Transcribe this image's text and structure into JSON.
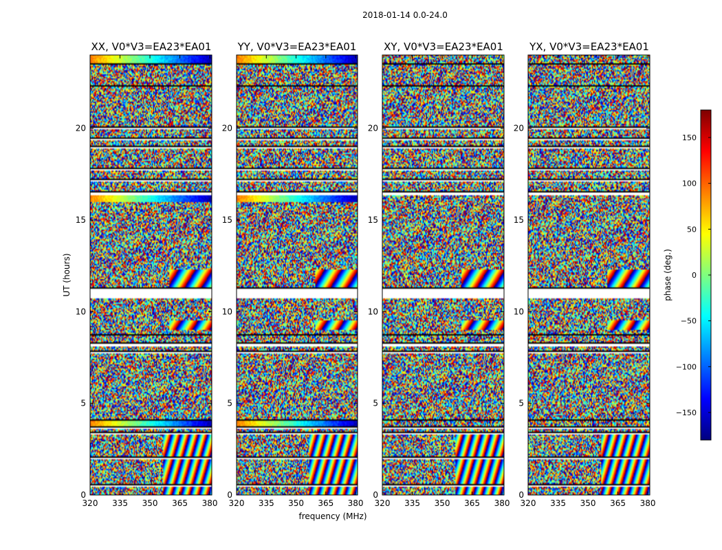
{
  "suptitle": "2018-01-14 0.0-24.0",
  "xlabel": "frequency (MHz)",
  "ylabel": "UT (hours)",
  "colorbar": {
    "label": "phase (deg.)",
    "ticks": [
      "150",
      "100",
      "50",
      "0",
      "−50",
      "−100",
      "−150"
    ],
    "tick_values": [
      150,
      100,
      50,
      0,
      -50,
      -100,
      -150
    ],
    "range": [
      -180,
      180
    ],
    "colormap": "jet",
    "colors": [
      "#00007f",
      "#0000ff",
      "#007fff",
      "#00ffff",
      "#7fff7f",
      "#ffff00",
      "#ff7f00",
      "#ff0000",
      "#7f0000"
    ]
  },
  "chart_data": {
    "type": "heatmap",
    "title": "2018-01-14 0.0-24.0",
    "xlabel": "frequency (MHz)",
    "ylabel": "UT (hours)",
    "xlim": [
      320,
      381
    ],
    "ylim": [
      0,
      24
    ],
    "x_ticks": [
      320,
      335,
      350,
      365,
      380
    ],
    "x_tick_labels": [
      "320",
      "335",
      "350",
      "365",
      "380"
    ],
    "y_ticks": [
      0,
      5,
      10,
      15,
      20
    ],
    "y_tick_labels": [
      "0",
      "5",
      "10",
      "15",
      "20"
    ],
    "value_label": "phase (deg.)",
    "value_range": [
      -180,
      180
    ],
    "panels": [
      {
        "title": "XX, V0*V3=EA23*EA01",
        "pol": "XX"
      },
      {
        "title": "YY, V0*V3=EA23*EA01",
        "pol": "YY"
      },
      {
        "title": "XY, V0*V3=EA23*EA01",
        "pol": "XY"
      },
      {
        "title": "YX, V0*V3=EA23*EA01",
        "pol": "YX"
      }
    ],
    "flagged_ut_bands": [
      [
        0.45,
        0.5
      ],
      [
        1.9,
        2.0
      ],
      [
        3.3,
        3.4
      ],
      [
        3.6,
        3.7
      ],
      [
        4.0,
        4.05
      ],
      [
        7.7,
        7.8
      ],
      [
        8.1,
        8.3
      ],
      [
        8.7,
        8.75
      ],
      [
        10.7,
        11.3
      ],
      [
        16.4,
        16.55
      ],
      [
        17.1,
        17.2
      ],
      [
        17.7,
        17.8
      ],
      [
        18.9,
        19.0
      ],
      [
        19.4,
        19.5
      ],
      [
        20.0,
        20.1
      ],
      [
        22.3,
        22.35
      ],
      [
        23.5,
        23.55
      ]
    ]
  }
}
